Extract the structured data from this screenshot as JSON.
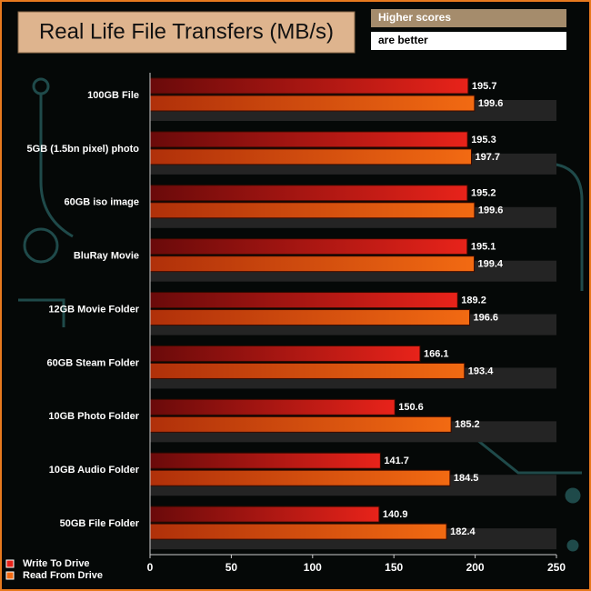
{
  "chart_data": {
    "type": "hbar",
    "title": "Real Life File Transfers (MB/s)",
    "annotations": [
      "Higher scores",
      "are better"
    ],
    "categories": [
      "100GB File",
      "5GB (1.5bn pixel) photo",
      "60GB iso image",
      "BluRay Movie",
      "12GB Movie Folder",
      "60GB Steam Folder",
      "10GB Photo Folder",
      "10GB Audio Folder",
      "50GB File Folder"
    ],
    "series": [
      {
        "name": "Write To  Drive",
        "color": "#e8231a",
        "values": [
          195.7,
          195.3,
          195.2,
          195.1,
          189.2,
          166.1,
          150.6,
          141.7,
          140.9
        ]
      },
      {
        "name": "Read From  Drive",
        "color": "#f26a12",
        "values": [
          199.6,
          197.7,
          199.6,
          199.4,
          196.6,
          193.4,
          185.2,
          184.5,
          182.4
        ]
      }
    ],
    "xlim": [
      0,
      250
    ],
    "xticks": [
      0,
      50,
      100,
      150,
      200,
      250
    ]
  }
}
